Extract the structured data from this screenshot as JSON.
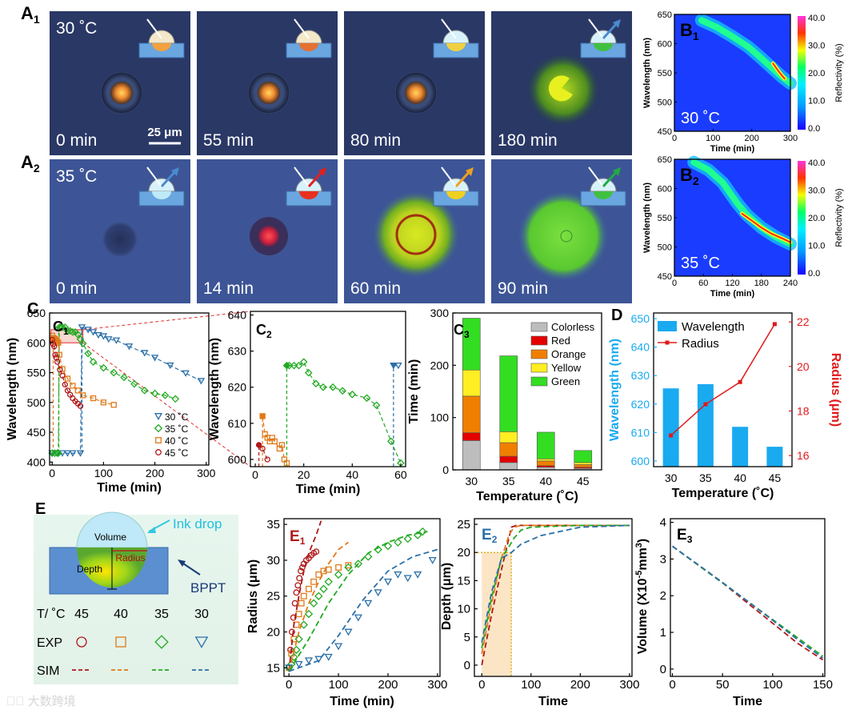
{
  "panel_labels": {
    "A1": "A",
    "A2": "A",
    "B1": "B",
    "B2": "B",
    "C": "C",
    "C1": "C",
    "C2": "C",
    "C3": "C",
    "D": "D",
    "E": "E",
    "E1": "E",
    "E2": "E",
    "E3": "E",
    "sub1": "1",
    "sub2": "2",
    "sub3": "3"
  },
  "A1": {
    "temp": "30 ˚C",
    "times": [
      "0 min",
      "55 min",
      "80 min",
      "180 min"
    ],
    "scalebar": "25 μm"
  },
  "A2": {
    "temp": "35 ˚C",
    "times": [
      "0 min",
      "14 min",
      "60 min",
      "90 min"
    ]
  },
  "B1": {
    "temp": "30 ˚C",
    "ylabel": "Wavelength (nm)",
    "xlabel": "Time (min)",
    "cbar_label": "Reflectivity (%)",
    "yticks": [
      "650",
      "600",
      "550",
      "500",
      "450"
    ],
    "xticks": [
      "0",
      "100",
      "200",
      "300"
    ],
    "cticks": [
      "40.0",
      "30.0",
      "20.0",
      "10.0",
      "0.0"
    ]
  },
  "B2": {
    "temp": "35 ˚C",
    "ylabel": "Wavelength (nm)",
    "xlabel": "Time (min)",
    "cbar_label": "Reflectivity (%)",
    "yticks": [
      "650",
      "600",
      "550",
      "500",
      "450"
    ],
    "xticks": [
      "0",
      "60",
      "120",
      "180",
      "240"
    ],
    "cticks": [
      "40.0",
      "30.0",
      "20.0",
      "10.0",
      "0.0"
    ]
  },
  "C1": {
    "ylabel": "Wavelength (nm)",
    "xlabel": "Time (min)",
    "yticks": [
      "650",
      "600",
      "550",
      "500",
      "450",
      "400"
    ],
    "xticks": [
      "0",
      "100",
      "200",
      "300"
    ],
    "legend": [
      "30 ˚C",
      "35 ˚C",
      "40 ˚C",
      "45 ˚C"
    ]
  },
  "C2": {
    "ylabel": "Wavelength (nm)",
    "xlabel": "Time (min)",
    "yticks": [
      "640",
      "630",
      "620",
      "610",
      "600"
    ],
    "xticks": [
      "0",
      "20",
      "40",
      "60"
    ]
  },
  "C3": {
    "ylabel": "Time (min)",
    "xlabel": "Temperature (˚C)",
    "yticks": [
      "300",
      "200",
      "100",
      "0"
    ],
    "xticks": [
      "30",
      "35",
      "40",
      "45"
    ],
    "legend": [
      "Colorless",
      "Red",
      "Orange",
      "Yellow",
      "Green"
    ]
  },
  "D": {
    "ylabel_left": "Wavelength (nm)",
    "ylabel_right": "Radius (μm)",
    "xlabel": "Temperature (˚C)",
    "yticks_left": [
      "650",
      "640",
      "630",
      "620",
      "610",
      "600"
    ],
    "yticks_right": [
      "22",
      "20",
      "18",
      "16"
    ],
    "xticks": [
      "30",
      "35",
      "40",
      "45"
    ],
    "legend": [
      "Wavelength",
      "Radius"
    ]
  },
  "E": {
    "labels": {
      "volume": "Volume",
      "radius": "Radius",
      "depth": "Depth",
      "ink": "Ink drop",
      "bppt": "BPPT"
    },
    "table": {
      "header": "T/ ˚C",
      "temps": [
        "45",
        "40",
        "35",
        "30"
      ],
      "exp": "EXP",
      "sim": "SIM"
    }
  },
  "E1": {
    "ylabel": "Radius (μm)",
    "xlabel": "Time (min)",
    "yticks": [
      "35",
      "30",
      "25",
      "20",
      "15"
    ],
    "xticks": [
      "0",
      "100",
      "200",
      "300"
    ]
  },
  "E2": {
    "ylabel": "Depth (μm)",
    "xlabel": "Time",
    "yticks": [
      "25",
      "20",
      "15",
      "10",
      "5",
      "0"
    ],
    "xticks": [
      "0",
      "100",
      "200",
      "300"
    ]
  },
  "E3": {
    "ylabel": "Volume (X10",
    "ylabel_sup": "-5",
    "ylabel_tail": "mm",
    "ylabel_sup2": "3",
    "ylabel_end": ")",
    "xlabel": "Time",
    "yticks": [
      "4",
      "3",
      "2",
      "1",
      "0"
    ],
    "xticks": [
      "0",
      "50",
      "100",
      "150"
    ]
  },
  "colors": {
    "t30": "#2a6fa8",
    "t35": "#22aa22",
    "t40": "#e07a1a",
    "t45": "#b01818",
    "wl_bar": "#19aaf0",
    "radius_line": "#e0191b",
    "colorless": "#bdbdbd",
    "red": "#e50000",
    "orange": "#f07f00",
    "yellow": "#ffee22",
    "green": "#33dd22"
  },
  "chart_data": [
    {
      "type": "scatter",
      "title": "C1",
      "xlabel": "Time (min)",
      "ylabel": "Wavelength (nm)",
      "xlim": [
        -5,
        305
      ],
      "ylim": [
        395,
        650
      ],
      "series": [
        {
          "name": "30 ˚C",
          "x": [
            0,
            10,
            20,
            30,
            40,
            55,
            58,
            70,
            80,
            90,
            100,
            110,
            125,
            150,
            180,
            200,
            230,
            260,
            290
          ],
          "y": [
            415,
            415,
            415,
            415,
            415,
            415,
            626,
            622,
            618,
            613,
            611,
            606,
            604,
            594,
            583,
            575,
            562,
            549,
            536
          ]
        },
        {
          "name": "35 ˚C",
          "x": [
            0,
            5,
            10,
            12,
            14,
            17,
            20,
            25,
            30,
            35,
            40,
            45,
            50,
            55,
            60,
            70,
            80,
            100,
            120,
            140,
            160,
            180,
            200,
            220,
            240
          ],
          "y": [
            415,
            415,
            415,
            415,
            626,
            626,
            626,
            626,
            620,
            620,
            618,
            618,
            614,
            606,
            599,
            582,
            568,
            558,
            550,
            542,
            531,
            520,
            515,
            512,
            506
          ]
        },
        {
          "name": "40 ˚C",
          "x": [
            0,
            2,
            4,
            6,
            8,
            10,
            12,
            14,
            20,
            30,
            40,
            50,
            60,
            80,
            100,
            120
          ],
          "y": [
            612,
            608,
            607,
            606,
            604,
            602,
            600,
            580,
            556,
            540,
            528,
            520,
            512,
            507,
            500,
            496
          ]
        },
        {
          "name": "45 ˚C",
          "x": [
            0,
            2,
            4,
            6,
            8,
            10,
            15,
            20,
            25,
            30,
            35,
            40,
            45,
            50,
            55
          ],
          "y": [
            605,
            598,
            594,
            580,
            575,
            568,
            555,
            545,
            530,
            520,
            513,
            507,
            502,
            498,
            494
          ]
        }
      ]
    },
    {
      "type": "scatter",
      "title": "C2",
      "xlabel": "Time (min)",
      "ylabel": "Wavelength (nm)",
      "xlim": [
        -2,
        62
      ],
      "ylim": [
        598,
        641
      ],
      "series": [
        {
          "name": "30 ˚C",
          "x": [
            57,
            59
          ],
          "y": [
            626,
            626
          ]
        },
        {
          "name": "35 ˚C",
          "x": [
            13,
            14,
            16,
            18,
            20,
            22,
            25,
            28,
            32,
            36,
            40,
            46,
            50,
            56,
            60
          ],
          "y": [
            626,
            626,
            626,
            626,
            627,
            624,
            621,
            620,
            620,
            619,
            618,
            617,
            615,
            605,
            599
          ]
        },
        {
          "name": "40 ˚C",
          "x": [
            3,
            4,
            5,
            6,
            7,
            8,
            10,
            11,
            12,
            13
          ],
          "y": [
            612,
            607,
            606,
            605,
            606,
            605,
            603,
            604,
            600,
            599
          ]
        },
        {
          "name": "45 ˚C",
          "x": [
            1.5,
            3,
            5
          ],
          "y": [
            604,
            603,
            600
          ]
        }
      ]
    },
    {
      "type": "bar",
      "title": "C3",
      "stacked": true,
      "categories": [
        "30",
        "35",
        "40",
        "45"
      ],
      "xlabel": "Temperature (˚C)",
      "ylabel": "Time (min)",
      "ylim": [
        0,
        300
      ],
      "series": [
        {
          "name": "Colorless",
          "values": [
            56,
            14,
            5,
            3
          ]
        },
        {
          "name": "Red",
          "values": [
            15,
            12,
            3,
            2
          ]
        },
        {
          "name": "Orange",
          "values": [
            70,
            26,
            9,
            5
          ]
        },
        {
          "name": "Yellow",
          "values": [
            50,
            21,
            4,
            4
          ]
        },
        {
          "name": "Green",
          "values": [
            99,
            145,
            51,
            23
          ]
        }
      ]
    },
    {
      "type": "bar",
      "title": "D",
      "categories": [
        "30",
        "35",
        "40",
        "45"
      ],
      "xlabel": "Temperature (˚C)",
      "series": [
        {
          "name": "Wavelength",
          "values": [
            625.5,
            627,
            612,
            605
          ],
          "axis": "left",
          "ylim": [
            598,
            652
          ]
        },
        {
          "name": "Radius",
          "values": [
            16.9,
            18.3,
            19.3,
            21.9
          ],
          "axis": "right",
          "ylim": [
            15.5,
            22.4
          ]
        }
      ]
    },
    {
      "type": "scatter",
      "title": "E1",
      "xlabel": "Time (min)",
      "ylabel": "Radius (μm)",
      "xlim": [
        -10,
        305
      ],
      "ylim": [
        13.8,
        35.8
      ],
      "series": [
        {
          "name": "45 ˚C EXP",
          "x": [
            0,
            3,
            6,
            9,
            12,
            15,
            18,
            21,
            24,
            27,
            30,
            35,
            40,
            45,
            50,
            55
          ],
          "y": [
            15,
            17.5,
            20,
            22,
            24,
            25.5,
            26.5,
            27.5,
            28.5,
            29,
            29.5,
            30,
            30.3,
            30.7,
            31,
            31.2
          ]
        },
        {
          "name": "40 ˚C EXP",
          "x": [
            0,
            5,
            10,
            15,
            20,
            25,
            30,
            40,
            50,
            60,
            70,
            80,
            100,
            120
          ],
          "y": [
            15,
            17,
            19,
            21,
            22.5,
            24,
            25,
            26,
            27,
            28,
            28.5,
            28.7,
            29,
            29.3
          ]
        },
        {
          "name": "35 ˚C EXP",
          "x": [
            0,
            5,
            10,
            15,
            20,
            30,
            40,
            50,
            60,
            70,
            80,
            100,
            120,
            140,
            160,
            180,
            200,
            220,
            240,
            260,
            270
          ],
          "y": [
            15,
            15.5,
            16.5,
            17.5,
            19,
            21,
            22.5,
            24,
            25,
            26,
            27,
            28,
            29,
            29.5,
            30.5,
            31.5,
            32,
            32.5,
            33,
            33.5,
            34
          ]
        },
        {
          "name": "30 ˚C EXP",
          "x": [
            0,
            20,
            40,
            60,
            80,
            100,
            120,
            140,
            160,
            180,
            200,
            220,
            240,
            260,
            290
          ],
          "y": [
            15,
            15.5,
            16,
            16.2,
            16.5,
            18,
            20,
            22,
            24,
            25.5,
            27,
            28,
            27.5,
            28,
            30
          ]
        },
        {
          "name": "45 ˚C SIM",
          "x": [
            0,
            10,
            20,
            30,
            40,
            55,
            65
          ],
          "y": [
            14.5,
            21,
            25,
            28.5,
            31,
            33.5,
            35.5
          ]
        },
        {
          "name": "40 ˚C SIM",
          "x": [
            0,
            20,
            40,
            60,
            80,
            100,
            120
          ],
          "y": [
            14.5,
            20,
            24,
            27,
            29.5,
            31.5,
            32.5
          ]
        },
        {
          "name": "35 ˚C SIM",
          "x": [
            0,
            40,
            80,
            120,
            160,
            200,
            240,
            280
          ],
          "y": [
            14.5,
            19,
            24,
            28,
            31,
            32.5,
            33.5,
            34
          ]
        },
        {
          "name": "30 ˚C SIM",
          "x": [
            0,
            60,
            100,
            150,
            200,
            250,
            300
          ],
          "y": [
            14.5,
            16,
            19.5,
            24.5,
            28.5,
            30.5,
            31.5
          ]
        }
      ]
    },
    {
      "type": "line",
      "title": "E2",
      "xlabel": "Time",
      "ylabel": "Depth (μm)",
      "xlim": [
        -15,
        305
      ],
      "ylim": [
        -2,
        26
      ],
      "series": [
        {
          "name": "45 ˚C SIM",
          "x": [
            0,
            20,
            40,
            55,
            60,
            70,
            100,
            200,
            300
          ],
          "y": [
            0,
            9,
            17,
            22.5,
            24.5,
            24.8,
            24.8,
            24.8,
            24.8
          ]
        },
        {
          "name": "40 ˚C SIM",
          "x": [
            0,
            20,
            40,
            55,
            65,
            80,
            100,
            200,
            300
          ],
          "y": [
            2,
            11,
            19,
            23,
            24.5,
            24.8,
            24.8,
            24.8,
            24.8
          ]
        },
        {
          "name": "35 ˚C SIM",
          "x": [
            0,
            20,
            40,
            55,
            65,
            80,
            100,
            200,
            300
          ],
          "y": [
            3,
            12,
            19,
            21,
            22.5,
            24,
            24.5,
            24.8,
            24.8
          ]
        },
        {
          "name": "30 ˚C SIM",
          "x": [
            0,
            20,
            40,
            60,
            80,
            120,
            200,
            300
          ],
          "y": [
            4,
            13,
            19,
            20,
            21.5,
            23,
            24.5,
            24.8
          ]
        }
      ]
    },
    {
      "type": "line",
      "title": "E3",
      "xlabel": "Time",
      "ylabel": "Volume",
      "xlim": [
        -2,
        152
      ],
      "ylim": [
        -0.2,
        4.1
      ],
      "series": [
        {
          "name": "45 ˚C SIM",
          "x": [
            0,
            25,
            50,
            75,
            100,
            125,
            150
          ],
          "y": [
            3.35,
            2.85,
            2.35,
            1.8,
            1.25,
            0.7,
            0.25
          ]
        },
        {
          "name": "35 ˚C SIM",
          "x": [
            0,
            25,
            50,
            75,
            100,
            125,
            150
          ],
          "y": [
            3.35,
            2.85,
            2.35,
            1.85,
            1.35,
            0.85,
            0.35
          ]
        },
        {
          "name": "30 ˚C SIM",
          "x": [
            0,
            25,
            50,
            75,
            100,
            125,
            150
          ],
          "y": [
            3.35,
            2.86,
            2.36,
            1.85,
            1.33,
            0.8,
            0.3
          ]
        }
      ]
    }
  ]
}
